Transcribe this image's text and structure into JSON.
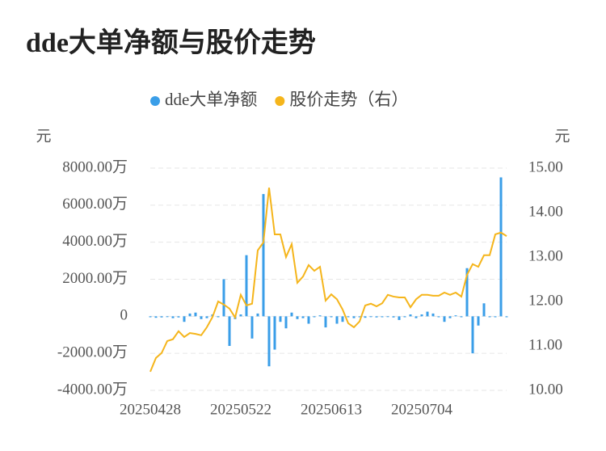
{
  "chart_data": {
    "type": "bar-line",
    "title": "dde大单净额与股价走势",
    "y_label": "元",
    "y2_label": "元",
    "categories": [
      "20250428",
      null,
      null,
      null,
      null,
      null,
      null,
      null,
      null,
      null,
      null,
      null,
      null,
      null,
      null,
      null,
      "20250522",
      null,
      null,
      null,
      null,
      null,
      null,
      null,
      null,
      null,
      null,
      null,
      null,
      null,
      null,
      null,
      "20250613",
      null,
      null,
      null,
      null,
      null,
      null,
      null,
      null,
      null,
      null,
      null,
      null,
      null,
      null,
      null,
      "20250704",
      null,
      null,
      null,
      null,
      null,
      null,
      null,
      null,
      null,
      null,
      null,
      null,
      null,
      null,
      null
    ],
    "series": [
      {
        "name": "dde大单净额",
        "type": "bar",
        "color": "#3a9ee8",
        "values": [
          -50,
          -80,
          -60,
          -40,
          -100,
          -60,
          -300,
          150,
          200,
          -150,
          -100,
          100,
          -50,
          2000,
          -1600,
          -150,
          100,
          3300,
          -1200,
          150,
          6600,
          -2700,
          -1800,
          -300,
          -650,
          200,
          -150,
          -100,
          -400,
          -50,
          50,
          -600,
          -50,
          -400,
          -300,
          -50,
          -100,
          -50,
          -80,
          -40,
          -60,
          -50,
          -30,
          -60,
          -200,
          -50,
          100,
          -100,
          100,
          250,
          150,
          -50,
          -300,
          -100,
          50,
          -50,
          2600,
          -2000,
          -500,
          700,
          -50,
          -50,
          7500,
          -50
        ]
      },
      {
        "name": "股价走势（右）",
        "type": "line",
        "axis": "y2",
        "color": "#f5b51b",
        "values": [
          10.42,
          10.73,
          10.84,
          11.11,
          11.15,
          11.33,
          11.2,
          11.29,
          11.27,
          11.24,
          11.42,
          11.65,
          12.0,
          11.93,
          11.84,
          11.64,
          12.15,
          11.91,
          11.95,
          13.15,
          13.33,
          14.56,
          13.51,
          13.51,
          13.0,
          13.29,
          12.42,
          12.56,
          12.82,
          12.69,
          12.78,
          12.02,
          12.16,
          12.05,
          11.82,
          11.51,
          11.42,
          11.55,
          11.91,
          11.95,
          11.89,
          11.96,
          12.15,
          12.11,
          12.09,
          12.09,
          11.87,
          12.05,
          12.15,
          12.15,
          12.13,
          12.13,
          12.2,
          12.15,
          12.2,
          12.11,
          12.6,
          12.84,
          12.78,
          13.04,
          13.04,
          13.51,
          13.55,
          13.47
        ]
      }
    ],
    "ylim": [
      -4000,
      8000
    ],
    "yticks": [
      {
        "value": -4000,
        "label": "-4000.00万"
      },
      {
        "value": -2000,
        "label": "-2000.00万"
      },
      0,
      {
        "value": 2000,
        "label": "2000.00万"
      },
      {
        "value": 4000,
        "label": "4000.00万"
      },
      {
        "value": 6000,
        "label": "6000.00万"
      },
      {
        "value": 8000,
        "label": "8000.00万"
      }
    ],
    "y2lim": [
      10,
      15
    ],
    "y2ticks": [
      {
        "value": 10,
        "label": "10.00"
      },
      {
        "value": 11,
        "label": "11.00"
      },
      {
        "value": 12,
        "label": "12.00"
      },
      {
        "value": 13,
        "label": "13.00"
      },
      {
        "value": 14,
        "label": "14.00"
      },
      {
        "value": 15,
        "label": "15.00"
      }
    ],
    "grid": true,
    "legend": "top"
  }
}
